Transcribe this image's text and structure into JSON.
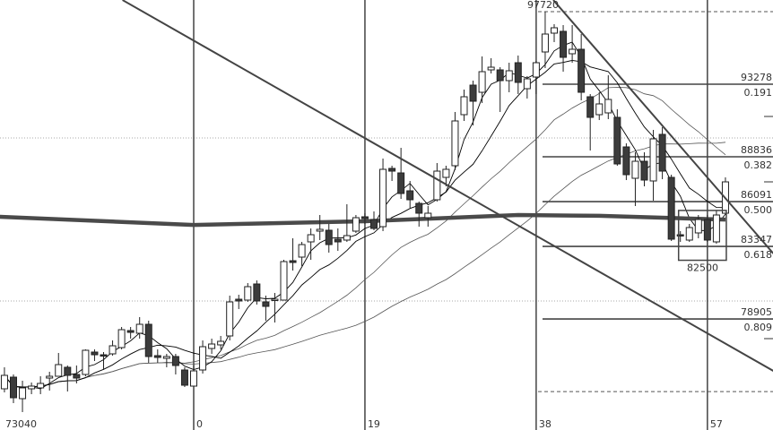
{
  "chart_data": {
    "type": "candlestick",
    "grid": "dotted horizontal",
    "colors": {
      "up": "#ffffff",
      "down": "#3c3c3c",
      "outline": "#222222",
      "ma_fast": "#000000",
      "ma_slow": "#555555",
      "long_ma": "#4a4a4a",
      "lines": "#444444"
    },
    "peak_label": "97720",
    "bottom_left_label": "73040",
    "box_label": "82500",
    "box": {
      "from_index": 54,
      "to_index": 59,
      "high": 85550,
      "low": 82500
    },
    "x_ticks": [
      {
        "index": 0,
        "label": "0"
      },
      {
        "index": 19,
        "label": "19"
      },
      {
        "index": 38,
        "label": "38"
      },
      {
        "index": 57,
        "label": "57"
      }
    ],
    "fib_top": 97720,
    "fib_bottom": 74460,
    "fib_levels": [
      {
        "price": 93278,
        "price_label": "93278",
        "ratio_label": "0.191"
      },
      {
        "price": 88836,
        "price_label": "88836",
        "ratio_label": "0.382"
      },
      {
        "price": 86091,
        "price_label": "86091",
        "ratio_label": "0.500"
      },
      {
        "price": 83347,
        "price_label": "83347",
        "ratio_label": "0.618"
      },
      {
        "price": 78905,
        "price_label": "78905",
        "ratio_label": "0.809"
      }
    ],
    "channel_lines": [
      {
        "from": [
          -7.9,
          98430
        ],
        "to": [
          64.5,
          75670
        ]
      },
      {
        "from": [
          39.9,
          98430
        ],
        "to": [
          64.5,
          82800
        ]
      }
    ],
    "long_ma": [
      [
        -21.5,
        85160
      ],
      [
        0,
        84660
      ],
      [
        19,
        84890
      ],
      [
        36,
        85270
      ],
      [
        45,
        85220
      ],
      [
        59,
        84990
      ]
    ],
    "ylim": [
      72100,
      98430
    ],
    "candles": [
      [
        -21,
        74632,
        75949,
        74413,
        75455
      ],
      [
        -20,
        75345,
        75510,
        73755,
        74084
      ],
      [
        -19,
        74029,
        75126,
        73207,
        74687
      ],
      [
        -18,
        74632,
        75016,
        74303,
        74797
      ],
      [
        -17,
        74687,
        75400,
        74303,
        74961
      ],
      [
        -16,
        75290,
        75674,
        74523,
        75400
      ],
      [
        -15,
        75400,
        76826,
        75400,
        76113
      ],
      [
        -14,
        75949,
        76058,
        74468,
        75455
      ],
      [
        -13,
        75510,
        76058,
        74961,
        75290
      ],
      [
        -12,
        75510,
        77045,
        75400,
        76991
      ],
      [
        -11,
        76881,
        77045,
        76332,
        76716
      ],
      [
        -10,
        76716,
        76881,
        75784,
        76662
      ],
      [
        -9,
        76771,
        77594,
        76662,
        77265
      ],
      [
        -8,
        77155,
        78416,
        77045,
        78252
      ],
      [
        -7,
        78197,
        78416,
        77703,
        78087
      ],
      [
        -6,
        78033,
        79020,
        77703,
        78581
      ],
      [
        -5,
        78581,
        78800,
        76223,
        76607
      ],
      [
        -4,
        76662,
        77045,
        76223,
        76552
      ],
      [
        -3,
        76497,
        76771,
        75949,
        76607
      ],
      [
        -2,
        76607,
        76771,
        75510,
        76058
      ],
      [
        -1,
        75784,
        75949,
        74742,
        74852
      ],
      [
        0,
        74797,
        76058,
        74797,
        75729
      ],
      [
        1,
        75784,
        77594,
        75565,
        77210
      ],
      [
        2,
        77100,
        77703,
        76771,
        77374
      ],
      [
        3,
        77320,
        77868,
        77045,
        77539
      ],
      [
        4,
        77868,
        80336,
        77594,
        79952
      ],
      [
        5,
        80116,
        80390,
        79513,
        80007
      ],
      [
        6,
        80062,
        81103,
        79952,
        80884
      ],
      [
        7,
        81049,
        81268,
        79787,
        80007
      ],
      [
        8,
        79952,
        80336,
        78800,
        79678
      ],
      [
        9,
        80062,
        80500,
        78690,
        80116
      ],
      [
        10,
        80062,
        82529,
        80062,
        82420
      ],
      [
        11,
        82474,
        83845,
        81871,
        82365
      ],
      [
        12,
        82694,
        83626,
        82145,
        83461
      ],
      [
        13,
        83626,
        84449,
        82529,
        84065
      ],
      [
        14,
        84284,
        85271,
        83736,
        84394
      ],
      [
        15,
        84339,
        84723,
        82968,
        83461
      ],
      [
        16,
        83791,
        84449,
        83078,
        83626
      ],
      [
        17,
        83736,
        85929,
        83626,
        84010
      ],
      [
        18,
        84284,
        85271,
        84175,
        85107
      ],
      [
        19,
        85162,
        85381,
        84723,
        85052
      ],
      [
        20,
        84997,
        85491,
        84339,
        84449
      ],
      [
        21,
        84558,
        88726,
        84284,
        88068
      ],
      [
        22,
        88123,
        88288,
        87355,
        87958
      ],
      [
        23,
        87848,
        89384,
        86259,
        86588
      ],
      [
        24,
        86752,
        87355,
        85710,
        86204
      ],
      [
        25,
        85984,
        86094,
        84558,
        85381
      ],
      [
        26,
        85107,
        85820,
        84558,
        85381
      ],
      [
        27,
        86204,
        88452,
        86094,
        87958
      ],
      [
        28,
        87574,
        88288,
        87026,
        88068
      ],
      [
        29,
        88288,
        91578,
        88013,
        91030
      ],
      [
        30,
        91413,
        92949,
        91030,
        92510
      ],
      [
        31,
        93223,
        93497,
        90756,
        92236
      ],
      [
        32,
        92784,
        94978,
        92126,
        94046
      ],
      [
        33,
        94155,
        94869,
        93936,
        94320
      ],
      [
        34,
        94155,
        94320,
        91578,
        93497
      ],
      [
        35,
        93497,
        94594,
        92784,
        94101
      ],
      [
        36,
        94594,
        95033,
        92675,
        93388
      ],
      [
        37,
        93004,
        93772,
        92401,
        93607
      ],
      [
        38,
        93717,
        94704,
        92675,
        94594
      ],
      [
        39,
        95252,
        97720,
        94265,
        96349
      ],
      [
        40,
        96404,
        96952,
        95856,
        96733
      ],
      [
        41,
        96514,
        96897,
        94046,
        94923
      ],
      [
        42,
        95143,
        96897,
        94594,
        95417
      ],
      [
        43,
        95417,
        96349,
        92291,
        92784
      ],
      [
        44,
        92510,
        92675,
        89220,
        91249
      ],
      [
        45,
        91413,
        92784,
        91084,
        92072
      ],
      [
        46,
        91523,
        93826,
        91139,
        92346
      ],
      [
        47,
        91249,
        91742,
        88288,
        88397
      ],
      [
        48,
        89439,
        89658,
        87410,
        87739
      ],
      [
        49,
        87519,
        89110,
        85820,
        88561
      ],
      [
        50,
        88561,
        89110,
        87026,
        87410
      ],
      [
        51,
        87355,
        90481,
        86149,
        89933
      ],
      [
        52,
        90207,
        90646,
        87465,
        87958
      ],
      [
        53,
        87574,
        87739,
        83681,
        83791
      ],
      [
        54,
        84065,
        84284,
        83626,
        84010
      ],
      [
        55,
        83736,
        84723,
        83626,
        84504
      ],
      [
        56,
        84175,
        85271,
        83846,
        84997
      ],
      [
        57,
        84997,
        85271,
        83626,
        83736
      ],
      [
        58,
        83626,
        85546,
        83516,
        85271
      ],
      [
        59,
        85381,
        87574,
        85271,
        87300
      ]
    ]
  }
}
